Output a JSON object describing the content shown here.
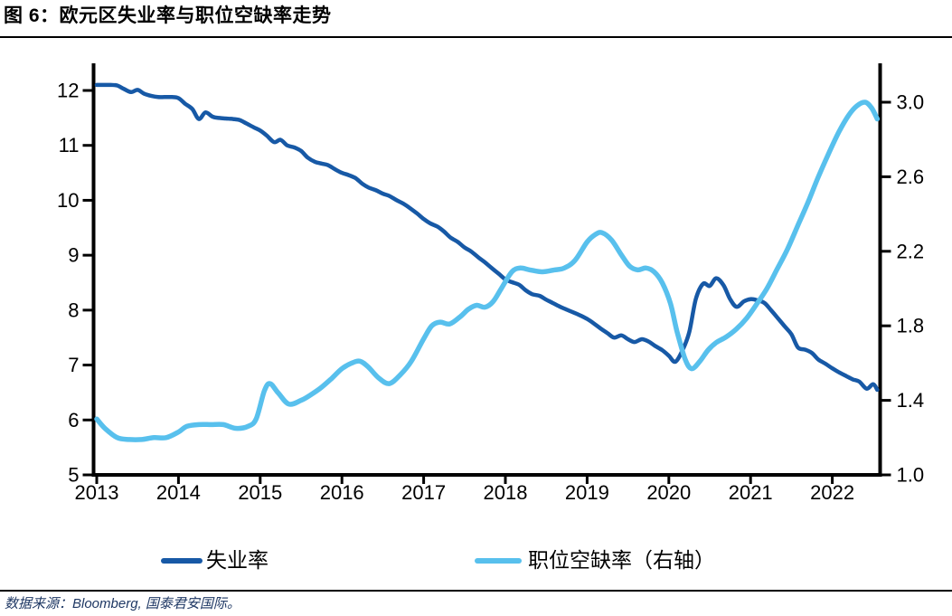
{
  "header": {
    "title": "图 6：欧元区失业率与职位空缺率走势"
  },
  "legend": {
    "items": [
      {
        "label": "失业率",
        "color": "#1759A6"
      },
      {
        "label": "职位空缺率（右轴）",
        "color": "#58C0ED"
      }
    ]
  },
  "footer": {
    "source": "数据来源：Bloomberg, 国泰君安国际。"
  },
  "colors": {
    "unemployment_line": "#1759A6",
    "vacancy_line": "#58C0ED",
    "axis": "#000000",
    "title_text": "#000000",
    "source_text": "#1F3864"
  },
  "chart_data": {
    "type": "line",
    "title": "图 6：欧元区失业率与职位空缺率走势",
    "grid": false,
    "legend_position": "bottom",
    "x_axis": {
      "ticks": [
        2013,
        2014,
        2015,
        2016,
        2017,
        2018,
        2019,
        2020,
        2021,
        2022
      ],
      "range": [
        2013,
        2022.6
      ]
    },
    "y_axis_left": {
      "ticks": [
        5,
        6,
        7,
        8,
        9,
        10,
        11,
        12
      ],
      "range": [
        5,
        12.5
      ]
    },
    "y_axis_right": {
      "tick_labels": [
        "1.0",
        "1.4",
        "1.8",
        "2.2",
        "2.6",
        "3.0"
      ],
      "ticks": [
        1.0,
        1.4,
        1.8,
        2.2,
        2.6,
        3.0
      ],
      "range": [
        1.0,
        3.21
      ]
    },
    "series": [
      {
        "name": "失业率",
        "axis": "left",
        "color": "#1759A6",
        "points": [
          [
            2013.0,
            12.1
          ],
          [
            2013.08,
            12.1
          ],
          [
            2013.17,
            12.1
          ],
          [
            2013.25,
            12.09
          ],
          [
            2013.33,
            12.03
          ],
          [
            2013.42,
            11.97
          ],
          [
            2013.5,
            12.01
          ],
          [
            2013.58,
            11.94
          ],
          [
            2013.67,
            11.9
          ],
          [
            2013.75,
            11.88
          ],
          [
            2013.83,
            11.88
          ],
          [
            2013.92,
            11.88
          ],
          [
            2014.0,
            11.86
          ],
          [
            2014.08,
            11.76
          ],
          [
            2014.17,
            11.66
          ],
          [
            2014.25,
            11.48
          ],
          [
            2014.33,
            11.6
          ],
          [
            2014.42,
            11.52
          ],
          [
            2014.5,
            11.5
          ],
          [
            2014.58,
            11.49
          ],
          [
            2014.67,
            11.48
          ],
          [
            2014.75,
            11.46
          ],
          [
            2014.83,
            11.4
          ],
          [
            2014.92,
            11.33
          ],
          [
            2015.0,
            11.27
          ],
          [
            2015.08,
            11.18
          ],
          [
            2015.17,
            11.06
          ],
          [
            2015.25,
            11.1
          ],
          [
            2015.33,
            11.0
          ],
          [
            2015.42,
            10.96
          ],
          [
            2015.5,
            10.9
          ],
          [
            2015.58,
            10.78
          ],
          [
            2015.67,
            10.7
          ],
          [
            2015.75,
            10.67
          ],
          [
            2015.83,
            10.64
          ],
          [
            2015.92,
            10.56
          ],
          [
            2016.0,
            10.5
          ],
          [
            2016.08,
            10.46
          ],
          [
            2016.17,
            10.4
          ],
          [
            2016.25,
            10.3
          ],
          [
            2016.33,
            10.23
          ],
          [
            2016.42,
            10.18
          ],
          [
            2016.5,
            10.12
          ],
          [
            2016.58,
            10.08
          ],
          [
            2016.67,
            10.0
          ],
          [
            2016.75,
            9.94
          ],
          [
            2016.83,
            9.86
          ],
          [
            2016.92,
            9.76
          ],
          [
            2017.0,
            9.66
          ],
          [
            2017.08,
            9.58
          ],
          [
            2017.17,
            9.52
          ],
          [
            2017.25,
            9.43
          ],
          [
            2017.33,
            9.32
          ],
          [
            2017.42,
            9.24
          ],
          [
            2017.5,
            9.14
          ],
          [
            2017.58,
            9.07
          ],
          [
            2017.67,
            8.96
          ],
          [
            2017.75,
            8.87
          ],
          [
            2017.83,
            8.77
          ],
          [
            2017.92,
            8.66
          ],
          [
            2018.0,
            8.56
          ],
          [
            2018.08,
            8.51
          ],
          [
            2018.17,
            8.46
          ],
          [
            2018.25,
            8.36
          ],
          [
            2018.33,
            8.29
          ],
          [
            2018.42,
            8.26
          ],
          [
            2018.5,
            8.19
          ],
          [
            2018.58,
            8.13
          ],
          [
            2018.67,
            8.06
          ],
          [
            2018.75,
            8.01
          ],
          [
            2018.83,
            7.96
          ],
          [
            2018.92,
            7.9
          ],
          [
            2019.0,
            7.84
          ],
          [
            2019.08,
            7.76
          ],
          [
            2019.17,
            7.66
          ],
          [
            2019.25,
            7.58
          ],
          [
            2019.33,
            7.5
          ],
          [
            2019.42,
            7.54
          ],
          [
            2019.5,
            7.47
          ],
          [
            2019.58,
            7.42
          ],
          [
            2019.67,
            7.47
          ],
          [
            2019.75,
            7.43
          ],
          [
            2019.83,
            7.35
          ],
          [
            2019.92,
            7.27
          ],
          [
            2020.0,
            7.17
          ],
          [
            2020.08,
            7.06
          ],
          [
            2020.17,
            7.28
          ],
          [
            2020.25,
            7.6
          ],
          [
            2020.33,
            8.2
          ],
          [
            2020.42,
            8.48
          ],
          [
            2020.5,
            8.44
          ],
          [
            2020.58,
            8.58
          ],
          [
            2020.67,
            8.45
          ],
          [
            2020.75,
            8.2
          ],
          [
            2020.83,
            8.06
          ],
          [
            2020.92,
            8.16
          ],
          [
            2021.0,
            8.2
          ],
          [
            2021.08,
            8.18
          ],
          [
            2021.17,
            8.13
          ],
          [
            2021.25,
            8.0
          ],
          [
            2021.33,
            7.86
          ],
          [
            2021.42,
            7.7
          ],
          [
            2021.5,
            7.56
          ],
          [
            2021.58,
            7.32
          ],
          [
            2021.67,
            7.28
          ],
          [
            2021.75,
            7.22
          ],
          [
            2021.83,
            7.1
          ],
          [
            2021.92,
            7.02
          ],
          [
            2022.0,
            6.94
          ],
          [
            2022.08,
            6.87
          ],
          [
            2022.17,
            6.8
          ],
          [
            2022.25,
            6.74
          ],
          [
            2022.33,
            6.7
          ],
          [
            2022.42,
            6.57
          ],
          [
            2022.5,
            6.65
          ],
          [
            2022.55,
            6.55
          ]
        ]
      },
      {
        "name": "职位空缺率（右轴）",
        "axis": "right",
        "color": "#58C0ED",
        "points": [
          [
            2013.0,
            1.3
          ],
          [
            2013.1,
            1.25
          ],
          [
            2013.25,
            1.2
          ],
          [
            2013.4,
            1.19
          ],
          [
            2013.55,
            1.19
          ],
          [
            2013.7,
            1.2
          ],
          [
            2013.85,
            1.2
          ],
          [
            2014.0,
            1.23
          ],
          [
            2014.1,
            1.26
          ],
          [
            2014.25,
            1.27
          ],
          [
            2014.4,
            1.27
          ],
          [
            2014.55,
            1.27
          ],
          [
            2014.7,
            1.25
          ],
          [
            2014.85,
            1.26
          ],
          [
            2014.95,
            1.3
          ],
          [
            2015.05,
            1.45
          ],
          [
            2015.12,
            1.49
          ],
          [
            2015.22,
            1.44
          ],
          [
            2015.35,
            1.38
          ],
          [
            2015.5,
            1.4
          ],
          [
            2015.62,
            1.43
          ],
          [
            2015.75,
            1.47
          ],
          [
            2015.88,
            1.52
          ],
          [
            2016.0,
            1.57
          ],
          [
            2016.12,
            1.6
          ],
          [
            2016.22,
            1.61
          ],
          [
            2016.32,
            1.58
          ],
          [
            2016.45,
            1.52
          ],
          [
            2016.58,
            1.49
          ],
          [
            2016.72,
            1.54
          ],
          [
            2016.85,
            1.61
          ],
          [
            2017.0,
            1.73
          ],
          [
            2017.1,
            1.8
          ],
          [
            2017.2,
            1.82
          ],
          [
            2017.32,
            1.81
          ],
          [
            2017.45,
            1.85
          ],
          [
            2017.55,
            1.89
          ],
          [
            2017.65,
            1.91
          ],
          [
            2017.75,
            1.9
          ],
          [
            2017.85,
            1.93
          ],
          [
            2017.95,
            2.0
          ],
          [
            2018.08,
            2.09
          ],
          [
            2018.18,
            2.11
          ],
          [
            2018.3,
            2.1
          ],
          [
            2018.45,
            2.09
          ],
          [
            2018.6,
            2.1
          ],
          [
            2018.72,
            2.11
          ],
          [
            2018.85,
            2.15
          ],
          [
            2019.0,
            2.25
          ],
          [
            2019.1,
            2.29
          ],
          [
            2019.18,
            2.3
          ],
          [
            2019.3,
            2.26
          ],
          [
            2019.42,
            2.18
          ],
          [
            2019.52,
            2.12
          ],
          [
            2019.62,
            2.1
          ],
          [
            2019.72,
            2.11
          ],
          [
            2019.82,
            2.09
          ],
          [
            2019.92,
            2.03
          ],
          [
            2020.02,
            1.92
          ],
          [
            2020.1,
            1.77
          ],
          [
            2020.2,
            1.62
          ],
          [
            2020.28,
            1.57
          ],
          [
            2020.38,
            1.61
          ],
          [
            2020.48,
            1.67
          ],
          [
            2020.58,
            1.71
          ],
          [
            2020.7,
            1.74
          ],
          [
            2020.82,
            1.78
          ],
          [
            2020.95,
            1.84
          ],
          [
            2021.08,
            1.92
          ],
          [
            2021.2,
            2.0
          ],
          [
            2021.32,
            2.1
          ],
          [
            2021.45,
            2.21
          ],
          [
            2021.58,
            2.34
          ],
          [
            2021.7,
            2.46
          ],
          [
            2021.82,
            2.59
          ],
          [
            2021.95,
            2.72
          ],
          [
            2022.08,
            2.84
          ],
          [
            2022.2,
            2.93
          ],
          [
            2022.3,
            2.98
          ],
          [
            2022.4,
            3.0
          ],
          [
            2022.48,
            2.97
          ],
          [
            2022.55,
            2.91
          ]
        ]
      }
    ]
  }
}
